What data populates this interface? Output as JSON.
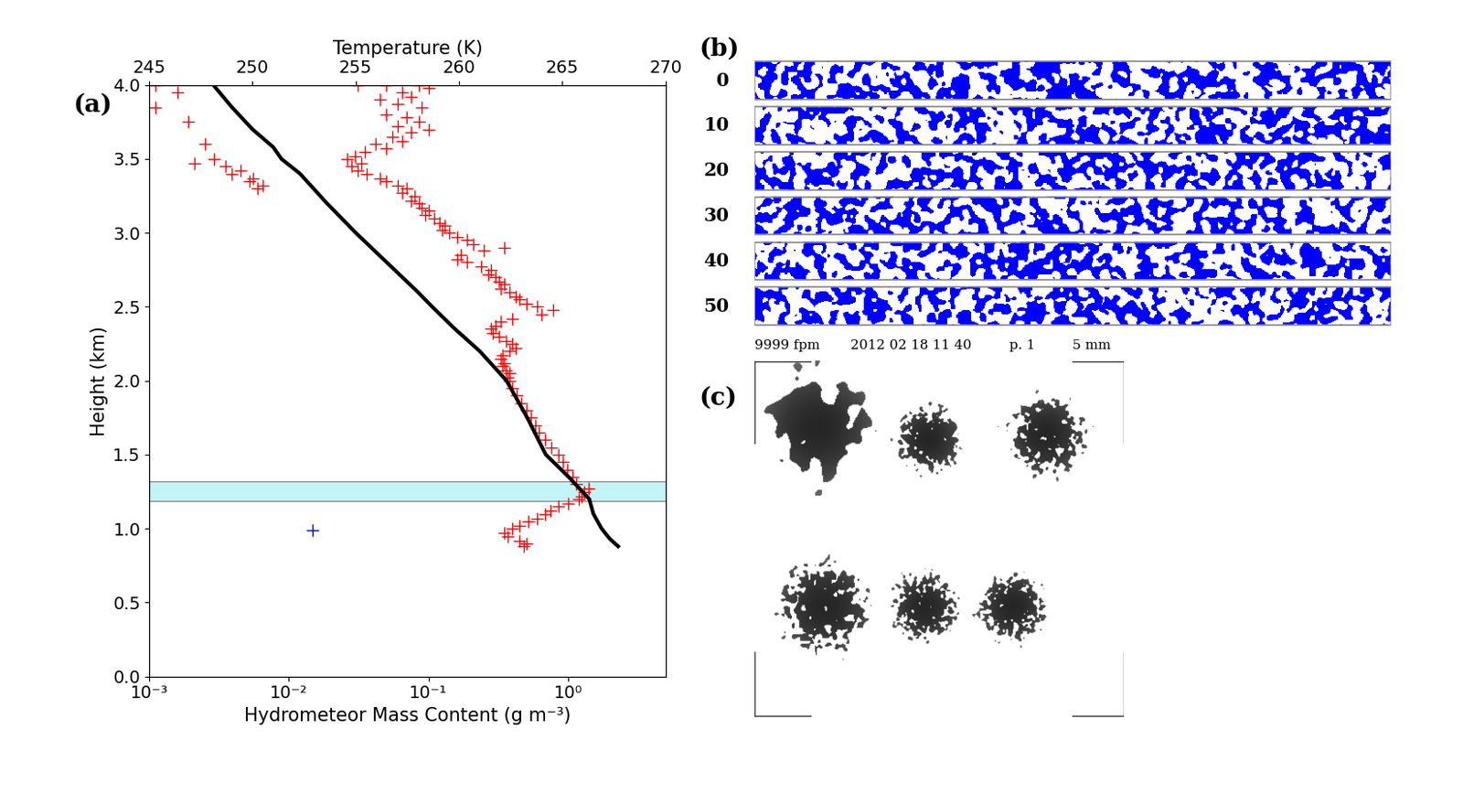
{
  "chart_data": {
    "type": "scatter",
    "panel_label": "(a)",
    "x_label": "Hydrometeor Mass Content (g m⁻³)",
    "x2_label": "Temperature (K)",
    "y_label": "Height (km)",
    "log": "x",
    "xlim": [
      0.001,
      5
    ],
    "xticks": [
      {
        "value": 0.001,
        "label": "10⁻³"
      },
      {
        "value": 0.01,
        "label": "10⁻²"
      },
      {
        "value": 0.1,
        "label": "10⁻¹"
      },
      {
        "value": 1,
        "label": "10⁰"
      }
    ],
    "x2lim": [
      245,
      270
    ],
    "x2ticks": [
      245,
      250,
      255,
      260,
      265,
      270
    ],
    "ylim": [
      0,
      4
    ],
    "yticks": [
      {
        "value": 0,
        "label": "0.0"
      },
      {
        "value": 0.5,
        "label": "0.5"
      },
      {
        "value": 1,
        "label": "1.0"
      },
      {
        "value": 1.5,
        "label": "1.5"
      },
      {
        "value": 2,
        "label": "2.0"
      },
      {
        "value": 2.5,
        "label": "2.5"
      },
      {
        "value": 3,
        "label": "3.0"
      },
      {
        "value": 3.5,
        "label": "3.5"
      },
      {
        "value": 4,
        "label": "4.0"
      }
    ],
    "band": {
      "y": [
        1.185,
        1.32
      ],
      "color": "#c4f4f8"
    },
    "series": [
      {
        "type": "scatter",
        "color": "#ff0000",
        "marker": "plus",
        "x": [
          0.031,
          0.05,
          0.085,
          0.1,
          0.065,
          0.075,
          0.045,
          0.06,
          0.09,
          0.05,
          0.07,
          0.085,
          0.06,
          0.1,
          0.075,
          0.055,
          0.065,
          0.042,
          0.05,
          0.035,
          0.03,
          0.026,
          0.033,
          0.028,
          0.031,
          0.036,
          0.045,
          0.05,
          0.06,
          0.07,
          0.065,
          0.08,
          0.075,
          0.085,
          0.09,
          0.1,
          0.095,
          0.11,
          0.12,
          0.13,
          0.125,
          0.14,
          0.16,
          0.19,
          0.21,
          0.35,
          0.25,
          0.17,
          0.16,
          0.19,
          0.24,
          0.28,
          0.27,
          0.3,
          0.32,
          0.35,
          0.33,
          0.38,
          0.42,
          0.45,
          0.5,
          0.6,
          0.78,
          0.65,
          0.4,
          0.33,
          0.3,
          0.28,
          0.29,
          0.32,
          0.36,
          0.4,
          0.42,
          0.38,
          0.34,
          0.33,
          0.35,
          0.34,
          0.36,
          0.38,
          0.37,
          0.38,
          0.4,
          0.43,
          0.46,
          0.5,
          0.54,
          0.58,
          0.62,
          0.68,
          0.76,
          0.85,
          0.92,
          0.99,
          1.08,
          1.15,
          1.4,
          1.3,
          1.25,
          1.2,
          1.0,
          0.85,
          0.75,
          0.68,
          0.6,
          0.52,
          0.45,
          0.4,
          0.35,
          0.37,
          0.45,
          0.5,
          0.48,
          0.0011,
          0.0016,
          0.0011,
          0.0019,
          0.0025,
          0.0029,
          0.0021,
          0.0035,
          0.0045,
          0.0039,
          0.0055,
          0.0052,
          0.0065,
          0.006
        ],
        "y": [
          4.0,
          4.0,
          4.0,
          3.98,
          3.95,
          3.92,
          3.9,
          3.87,
          3.85,
          3.8,
          3.78,
          3.75,
          3.72,
          3.7,
          3.68,
          3.65,
          3.62,
          3.6,
          3.57,
          3.55,
          3.52,
          3.5,
          3.47,
          3.45,
          3.42,
          3.4,
          3.37,
          3.35,
          3.32,
          3.3,
          3.27,
          3.25,
          3.22,
          3.2,
          3.17,
          3.15,
          3.12,
          3.1,
          3.07,
          3.05,
          3.02,
          3.0,
          2.97,
          2.95,
          2.92,
          2.9,
          2.88,
          2.85,
          2.82,
          2.8,
          2.77,
          2.75,
          2.72,
          2.7,
          2.67,
          2.65,
          2.62,
          2.6,
          2.57,
          2.55,
          2.52,
          2.5,
          2.48,
          2.45,
          2.42,
          2.4,
          2.37,
          2.35,
          2.32,
          2.3,
          2.27,
          2.25,
          2.22,
          2.2,
          2.17,
          2.15,
          2.12,
          2.1,
          2.07,
          2.05,
          2.02,
          2.0,
          1.95,
          1.9,
          1.85,
          1.8,
          1.75,
          1.7,
          1.65,
          1.6,
          1.55,
          1.5,
          1.45,
          1.4,
          1.35,
          1.3,
          1.27,
          1.25,
          1.22,
          1.2,
          1.17,
          1.15,
          1.12,
          1.1,
          1.07,
          1.05,
          1.02,
          1.0,
          0.97,
          0.95,
          0.92,
          0.9,
          0.88,
          4.0,
          3.95,
          3.85,
          3.75,
          3.6,
          3.5,
          3.47,
          3.45,
          3.42,
          3.4,
          3.37,
          3.35,
          3.32,
          3.3
        ]
      },
      {
        "type": "scatter",
        "color": "#0000ff",
        "marker": "plus",
        "x": [
          0.0148
        ],
        "y": [
          0.99
        ]
      },
      {
        "type": "line",
        "color": "#000000",
        "line_style": "solid",
        "axis": "x2",
        "x": [
          248.1,
          249.0,
          250.0,
          251.0,
          251.4,
          252.3,
          253.6,
          255.0,
          256.5,
          258.0,
          258.7,
          259.8,
          261.0,
          262.3,
          263.3,
          264.2,
          265.3,
          266.3,
          266.5,
          266.9,
          267.3,
          267.7
        ],
        "y": [
          4.0,
          3.85,
          3.7,
          3.58,
          3.5,
          3.4,
          3.2,
          3.0,
          2.8,
          2.6,
          2.5,
          2.35,
          2.2,
          2.0,
          1.75,
          1.5,
          1.35,
          1.2,
          1.1,
          1.0,
          0.93,
          0.88
        ]
      }
    ]
  },
  "panel_b": {
    "label": "(b)",
    "strip_labels": [
      0,
      10,
      20,
      30,
      40,
      50
    ]
  },
  "panel_c": {
    "label": "(c)",
    "header": [
      "9999 fpm",
      "2012 02 18 11 40",
      "p. 1",
      "5 mm"
    ]
  }
}
